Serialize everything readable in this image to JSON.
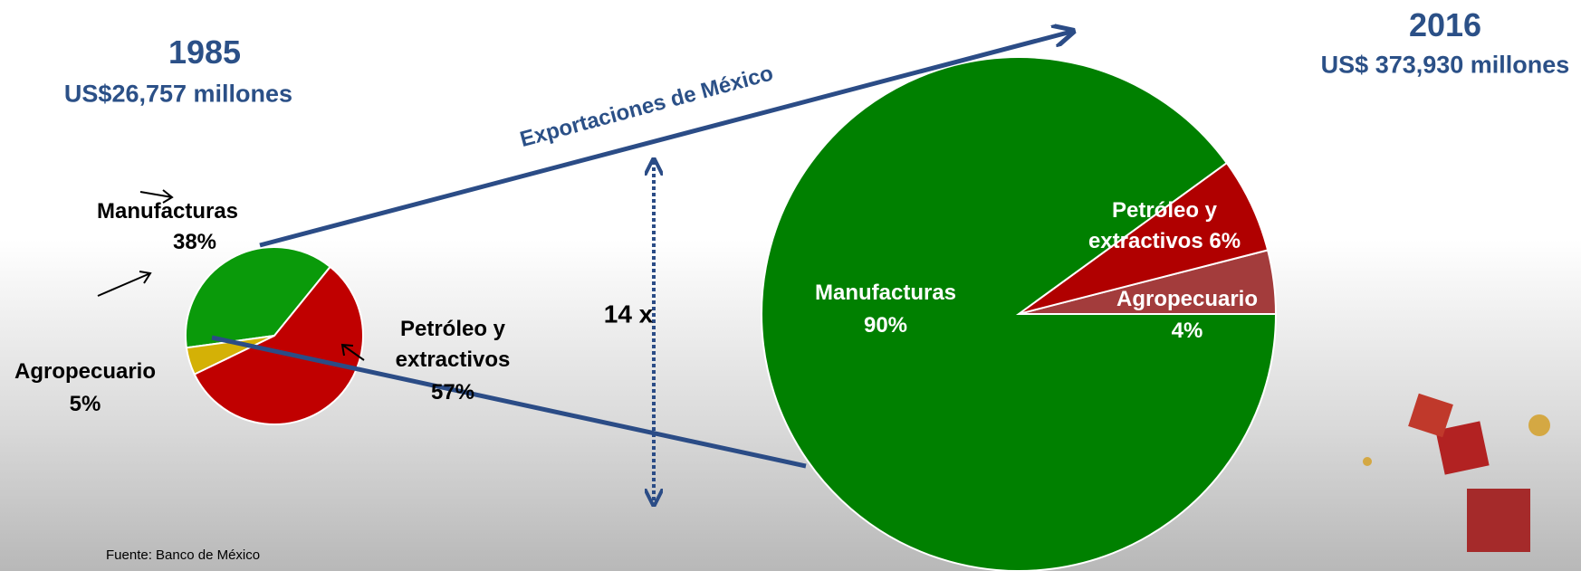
{
  "chart_data": [
    {
      "type": "pie",
      "title": "1985",
      "subtitle": "US$26,757 millones",
      "categories": [
        "Manufacturas",
        "Agropecuario",
        "Petróleo y extractivos"
      ],
      "values": [
        38,
        5,
        57
      ],
      "value_labels": [
        "38%",
        "5%",
        "57%"
      ],
      "colors": [
        "#0a9a0a",
        "#d4b106",
        "#c00000"
      ]
    },
    {
      "type": "pie",
      "title": "2016",
      "subtitle": "US$ 373,930 millones",
      "categories": [
        "Agropecuario",
        "Petróleo y extractivos",
        "Manufacturas"
      ],
      "values": [
        4,
        6,
        90
      ],
      "value_labels": [
        "4%",
        "6%",
        "90%"
      ],
      "colors": [
        "#a33c3c",
        "#b00000",
        "#008000"
      ]
    }
  ],
  "annotations": {
    "arrow_label": "Exportaciones de México",
    "growth": "14 x",
    "source": "Fuente: Banco de México"
  }
}
